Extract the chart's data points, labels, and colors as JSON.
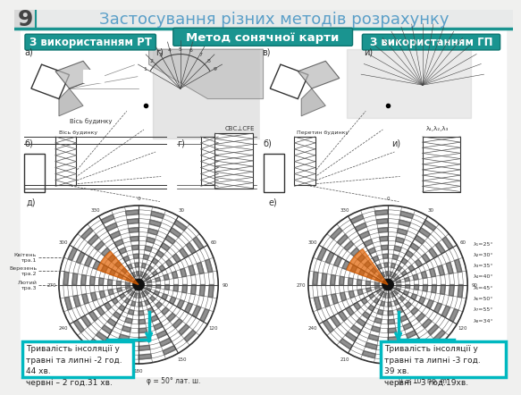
{
  "title": "Застосування різних методів розрахунку",
  "slide_number": "9",
  "method_center_label": "Метод сонячної карти",
  "label_left": "З використанням РТ",
  "label_right": "З використанням ГП",
  "text_left": "Тривалість інсоляції у\nтравні та липні -2 год.\n44 хв.\nчервні – 2 год.31 хв.",
  "text_right": "Тривалість інсоляції у\nтравні та липні -3 год.\n39 хв.\nчервні – 3 год.19хв.",
  "bg_color": "#f0f0ef",
  "header_bg": "#e8e8e8",
  "teal_color": "#1a9490",
  "teal_dark": "#0d7570",
  "teal_light": "#3dbcb8",
  "title_color": "#5a9fc8",
  "slide_num_color": "#444444",
  "box_border_color": "#00b8c0",
  "box_bg_color": "#ffffff",
  "box_text_color": "#222222",
  "content_bg": "#ffffff",
  "diagram_bg": "#f8f8f8",
  "gray_shade": "#c8c8c8",
  "line_color": "#555555",
  "chart_gray": "#888888"
}
